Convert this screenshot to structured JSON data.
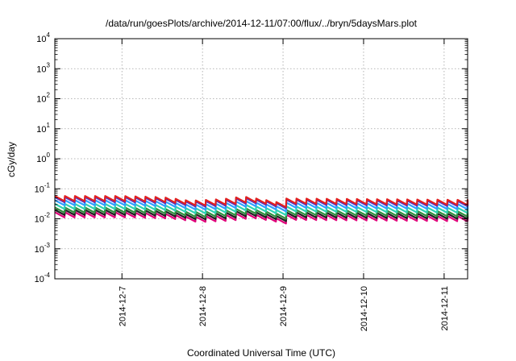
{
  "chart_data": {
    "type": "line",
    "title": "/data/run/goesPlots/archive/2014-12-11/07:00/flux/../bryn/5daysMars.plot",
    "xlabel": "Coordinated Universal Time (UTC)",
    "ylabel": "cGy/day",
    "yscale": "log",
    "ylim": [
      0.0001,
      10000
    ],
    "xlim": [
      "2014-12-06T04:00",
      "2014-12-11T07:00"
    ],
    "x_ticks": [
      "2014-12-7",
      "2014-12-8",
      "2014-12-9",
      "2014-12-10",
      "2014-12-11"
    ],
    "y_ticks": [
      {
        "base": "10",
        "exp": "4"
      },
      {
        "base": "10",
        "exp": "3"
      },
      {
        "base": "10",
        "exp": "2"
      },
      {
        "base": "10",
        "exp": "1"
      },
      {
        "base": "10",
        "exp": "0"
      },
      {
        "base": "10",
        "exp": "-1"
      },
      {
        "base": "10",
        "exp": "-2"
      },
      {
        "base": "10",
        "exp": "-3"
      },
      {
        "base": "10",
        "exp": "-4"
      }
    ],
    "grid": true,
    "legend": false,
    "series": [
      {
        "color": "#e0007a",
        "level": 0.0118
      },
      {
        "color": "#202020",
        "level": 0.0142
      },
      {
        "color": "#2f8f3f",
        "level": 0.017
      },
      {
        "color": "#2fd3b3",
        "level": 0.0224
      },
      {
        "color": "#2fa0ff",
        "level": 0.0298
      },
      {
        "color": "#5030c8",
        "level": 0.0376
      },
      {
        "color": "#e02020",
        "level": 0.041
      }
    ],
    "trend": [
      {
        "x": "2014-12-06T04:00",
        "factor": 1.15
      },
      {
        "x": "2014-12-07T00:00",
        "factor": 1.15
      },
      {
        "x": "2014-12-07T12:00",
        "factor": 1.05
      },
      {
        "x": "2014-12-07T20:00",
        "factor": 0.8
      },
      {
        "x": "2014-12-08T06:00",
        "factor": 0.9
      },
      {
        "x": "2014-12-08T12:00",
        "factor": 1.1
      },
      {
        "x": "2014-12-08T22:00",
        "factor": 0.72
      },
      {
        "x": "2014-12-09T00:00",
        "factor": 0.95
      },
      {
        "x": "2014-12-11T07:00",
        "factor": 0.85
      }
    ],
    "sawtooth_period_hours": 3
  }
}
